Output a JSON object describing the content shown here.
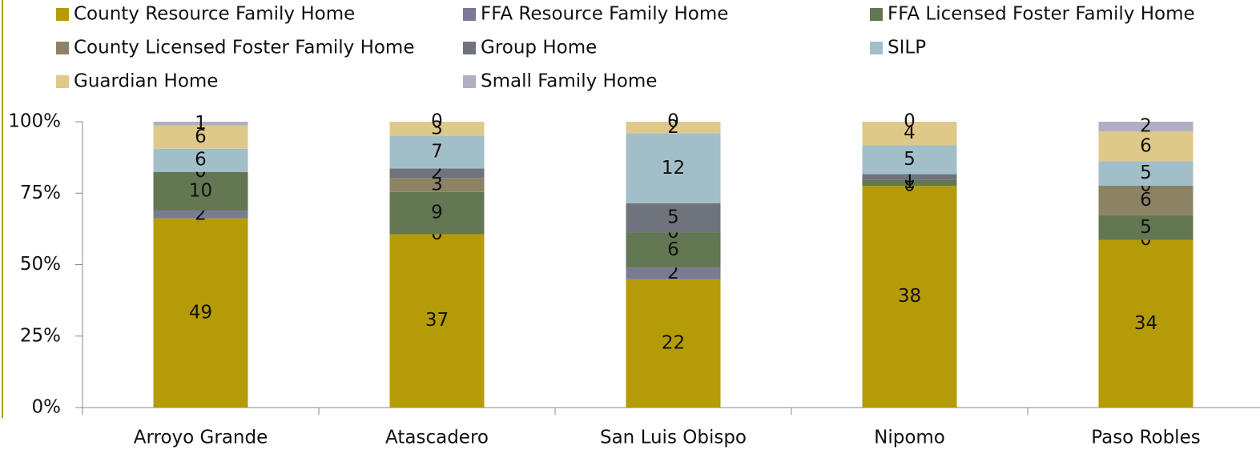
{
  "chart_data": {
    "type": "bar",
    "stacking": "percent",
    "categories": [
      "Arroyo Grande",
      "Atascadero",
      "San Luis Obispo",
      "Nipomo",
      "Paso Robles"
    ],
    "series": [
      {
        "name": "County Resource Family Home",
        "color": "#b59b07",
        "values": [
          49,
          37,
          22,
          38,
          34
        ]
      },
      {
        "name": "FFA Resource Family Home",
        "color": "#7b7a94",
        "values": [
          2,
          0,
          2,
          0,
          0
        ]
      },
      {
        "name": "FFA Licensed Foster Family Home",
        "color": "#637752",
        "values": [
          10,
          9,
          6,
          1,
          5
        ]
      },
      {
        "name": "County Licensed Foster Family Home",
        "color": "#8c8264",
        "values": [
          0,
          3,
          0,
          0,
          6
        ]
      },
      {
        "name": "Group Home",
        "color": "#6e737c",
        "values": [
          0,
          2,
          5,
          1,
          0
        ]
      },
      {
        "name": "SILP",
        "color": "#a2bfc9",
        "values": [
          6,
          7,
          12,
          5,
          5
        ]
      },
      {
        "name": "Guardian Home",
        "color": "#dfc98a",
        "values": [
          6,
          3,
          2,
          4,
          6
        ]
      },
      {
        "name": "Small Family Home",
        "color": "#b2aec2",
        "values": [
          1,
          0,
          0,
          0,
          2
        ]
      }
    ],
    "ylim": [
      0,
      100
    ],
    "yticks": [
      {
        "value": 0,
        "label": "0%"
      },
      {
        "value": 25,
        "label": "25%"
      },
      {
        "value": 50,
        "label": "50%"
      },
      {
        "value": 75,
        "label": "75%"
      },
      {
        "value": 100,
        "label": "100%"
      }
    ],
    "legend": "top"
  }
}
